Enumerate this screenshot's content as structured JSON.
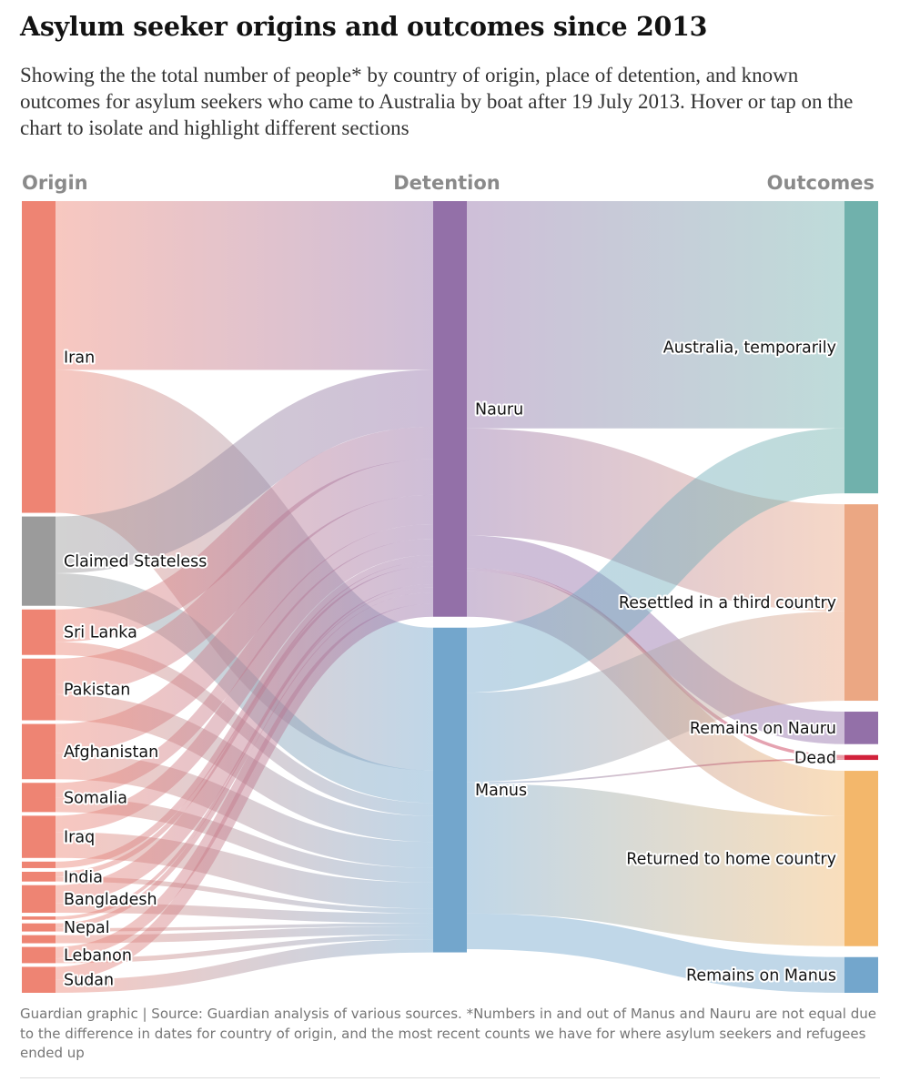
{
  "title": "Asylum seeker origins and outcomes since 2013",
  "subtitle": "Showing the the total number of people* by country of origin, place of detention, and known outcomes for asylum seekers who came to Australia by boat after 19 July 2013. Hover or tap on the chart to isolate and highlight different sections",
  "footer": "Guardian graphic | Source: Guardian analysis of various sources. *Numbers in and out of Manus and Nauru are not equal due to the difference in dates for country of origin, and the most recent counts we have for where asylum seekers and refugees ended up",
  "chart_data": {
    "type": "sankey",
    "columns": [
      "Origin",
      "Detention",
      "Outcomes"
    ],
    "colors": {
      "origin": "#ee8473",
      "stateless": "#9b9b9b",
      "Nauru": "#9370a8",
      "Manus": "#73a6cc",
      "Australia, temporarily": "#70b1ac",
      "Resettled in a third country": "#eba783",
      "Remains on Nauru": "#9370a8",
      "Dead": "#d1223b",
      "Returned to home country": "#f3b76b",
      "Remains on Manus": "#73a6cc"
    },
    "nodes": {
      "origin": [
        "Iran",
        "Claimed Stateless",
        "Sri Lanka",
        "Pakistan",
        "Afghanistan",
        "Somalia",
        "Iraq",
        "",
        "India",
        "Bangladesh",
        "",
        "Nepal",
        "",
        "Lebanon",
        "Sudan"
      ],
      "detention": [
        "Nauru",
        "Manus"
      ],
      "outcomes": [
        "Australia, temporarily",
        "Resettled in a third country",
        "Remains on Nauru",
        "Dead",
        "Returned to home country",
        "Remains on Manus"
      ]
    },
    "links": [
      {
        "source": "Iran",
        "target": "Nauru",
        "value": 520
      },
      {
        "source": "Iran",
        "target": "Manus",
        "value": 440
      },
      {
        "source": "Claimed Stateless",
        "target": "Nauru",
        "value": 175
      },
      {
        "source": "Claimed Stateless",
        "target": "Manus",
        "value": 100
      },
      {
        "source": "Sri Lanka",
        "target": "Nauru",
        "value": 100
      },
      {
        "source": "Sri Lanka",
        "target": "Manus",
        "value": 40
      },
      {
        "source": "Pakistan",
        "target": "Nauru",
        "value": 110
      },
      {
        "source": "Pakistan",
        "target": "Manus",
        "value": 80
      },
      {
        "source": "Afghanistan",
        "target": "Nauru",
        "value": 90
      },
      {
        "source": "Afghanistan",
        "target": "Manus",
        "value": 80
      },
      {
        "source": "Somalia",
        "target": "Nauru",
        "value": 45
      },
      {
        "source": "Somalia",
        "target": "Manus",
        "value": 45
      },
      {
        "source": "Iraq",
        "target": "Nauru",
        "value": 50
      },
      {
        "source": "Iraq",
        "target": "Manus",
        "value": 80
      },
      {
        "source": "",
        "target": "Nauru",
        "value": 20
      },
      {
        "source": "India",
        "target": "Nauru",
        "value": 15
      },
      {
        "source": "India",
        "target": "Manus",
        "value": 15
      },
      {
        "source": "Bangladesh",
        "target": "Nauru",
        "value": 55
      },
      {
        "source": "Bangladesh",
        "target": "Manus",
        "value": 30
      },
      {
        "source": "",
        "target": "Nauru",
        "value": 10
      },
      {
        "source": "Nepal",
        "target": "Nauru",
        "value": 15
      },
      {
        "source": "Nepal",
        "target": "Manus",
        "value": 10
      },
      {
        "source": "",
        "target": "Manus",
        "value": 25
      },
      {
        "source": "Lebanon",
        "target": "Nauru",
        "value": 35
      },
      {
        "source": "Lebanon",
        "target": "Manus",
        "value": 15
      },
      {
        "source": "Sudan",
        "target": "Nauru",
        "value": 40
      },
      {
        "source": "Sudan",
        "target": "Manus",
        "value": 40
      },
      {
        "source": "Nauru",
        "target": "Australia, temporarily",
        "value": 700
      },
      {
        "source": "Nauru",
        "target": "Resettled in a third country",
        "value": 330
      },
      {
        "source": "Nauru",
        "target": "Remains on Nauru",
        "value": 100
      },
      {
        "source": "Nauru",
        "target": "Dead",
        "value": 10
      },
      {
        "source": "Nauru",
        "target": "Returned to home country",
        "value": 140
      },
      {
        "source": "Manus",
        "target": "Australia, temporarily",
        "value": 200
      },
      {
        "source": "Manus",
        "target": "Resettled in a third country",
        "value": 275
      },
      {
        "source": "Manus",
        "target": "Dead",
        "value": 5
      },
      {
        "source": "Manus",
        "target": "Returned to home country",
        "value": 400
      },
      {
        "source": "Manus",
        "target": "Remains on Manus",
        "value": 110
      }
    ]
  }
}
